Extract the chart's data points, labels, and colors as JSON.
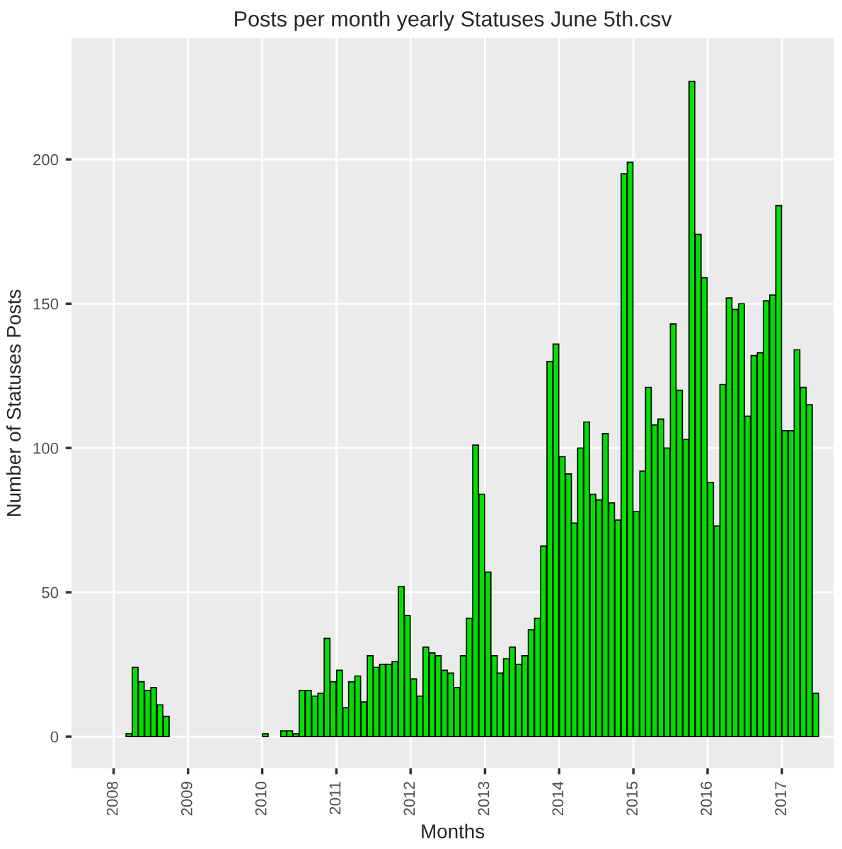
{
  "chart_data": {
    "type": "bar",
    "title": "Posts per month yearly Statuses June 5th.csv",
    "xlabel": "Months",
    "ylabel": "Number of Statuses Posts",
    "x": [
      "2008-03",
      "2008-04",
      "2008-05",
      "2008-06",
      "2008-07",
      "2008-08",
      "2008-09",
      "2010-01",
      "2010-04",
      "2010-05",
      "2010-06",
      "2010-07",
      "2010-08",
      "2010-09",
      "2010-10",
      "2010-11",
      "2010-12",
      "2011-01",
      "2011-02",
      "2011-03",
      "2011-04",
      "2011-05",
      "2011-06",
      "2011-07",
      "2011-08",
      "2011-09",
      "2011-10",
      "2011-11",
      "2011-12",
      "2012-01",
      "2012-02",
      "2012-03",
      "2012-04",
      "2012-05",
      "2012-06",
      "2012-07",
      "2012-08",
      "2012-09",
      "2012-10",
      "2012-11",
      "2012-12",
      "2013-01",
      "2013-02",
      "2013-03",
      "2013-04",
      "2013-05",
      "2013-06",
      "2013-07",
      "2013-08",
      "2013-09",
      "2013-10",
      "2013-11",
      "2013-12",
      "2014-01",
      "2014-02",
      "2014-03",
      "2014-04",
      "2014-05",
      "2014-06",
      "2014-07",
      "2014-08",
      "2014-09",
      "2014-10",
      "2014-11",
      "2014-12",
      "2015-01",
      "2015-02",
      "2015-03",
      "2015-04",
      "2015-05",
      "2015-06",
      "2015-07",
      "2015-08",
      "2015-09",
      "2015-10",
      "2015-11",
      "2015-12",
      "2016-01",
      "2016-02",
      "2016-03",
      "2016-04",
      "2016-05",
      "2016-06",
      "2016-07",
      "2016-08",
      "2016-09",
      "2016-10",
      "2016-11",
      "2016-12",
      "2017-01",
      "2017-02",
      "2017-03",
      "2017-04",
      "2017-05",
      "2017-06"
    ],
    "values": [
      1,
      24,
      19,
      16,
      17,
      11,
      7,
      1,
      2,
      2,
      1,
      16,
      16,
      14,
      15,
      34,
      19,
      23,
      10,
      19,
      21,
      12,
      28,
      24,
      25,
      25,
      26,
      52,
      42,
      20,
      14,
      31,
      29,
      28,
      23,
      22,
      17,
      28,
      41,
      101,
      84,
      57,
      28,
      22,
      27,
      31,
      25,
      28,
      37,
      41,
      66,
      130,
      136,
      97,
      91,
      74,
      100,
      109,
      84,
      82,
      105,
      81,
      75,
      195,
      199,
      78,
      92,
      121,
      108,
      110,
      100,
      143,
      120,
      103,
      227,
      174,
      159,
      88,
      73,
      122,
      152,
      148,
      150,
      111,
      132,
      133,
      151,
      153,
      184,
      106,
      106,
      134,
      121,
      115,
      15
    ],
    "color": "#00e000",
    "xlim": [
      "2007-06-08",
      "2017-09-12"
    ],
    "xticks": [
      "2008",
      "2009",
      "2010",
      "2011",
      "2012",
      "2013",
      "2014",
      "2015",
      "2016",
      "2017"
    ],
    "ylim": [
      -11,
      242
    ],
    "yticks": [
      0,
      50,
      100,
      150,
      200
    ],
    "grid": true
  }
}
